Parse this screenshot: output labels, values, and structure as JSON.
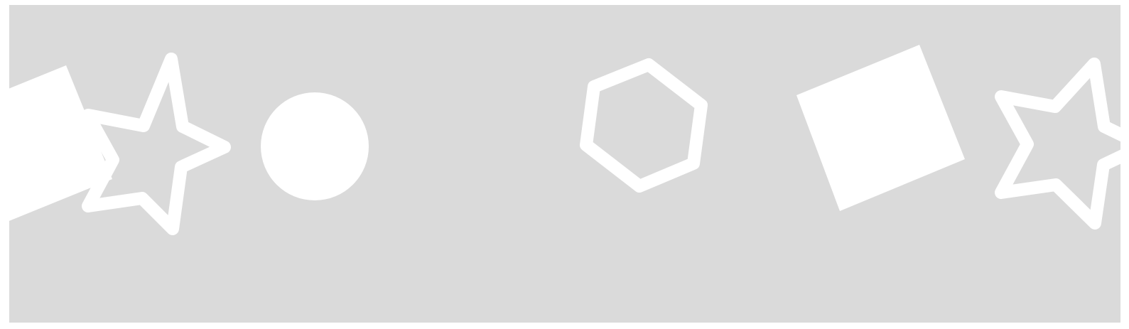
{
  "colors": {
    "background": "#dadada",
    "shape": "#ffffff",
    "page": "#ffffff"
  },
  "shapes": [
    {
      "name": "square",
      "style": "filled"
    },
    {
      "name": "star",
      "style": "outline"
    },
    {
      "name": "circle",
      "style": "filled"
    },
    {
      "name": "hexagon",
      "style": "outline"
    },
    {
      "name": "square",
      "style": "filled"
    },
    {
      "name": "star",
      "style": "outline"
    }
  ]
}
